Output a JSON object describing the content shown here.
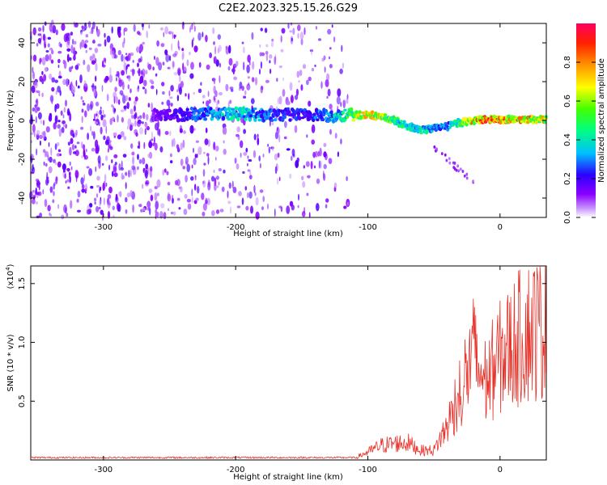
{
  "title": "C2E2.2023.325.15.26.G29",
  "colors": {
    "snr_line": "#e8332b",
    "axis": "#000000"
  },
  "chart_data": [
    {
      "type": "heatmap",
      "xlabel": "Height of straight line (km)",
      "ylabel": "Frequency (Hz)",
      "xlim": [
        -355,
        35
      ],
      "ylim": [
        -50,
        50
      ],
      "xticks": [
        "-300",
        "-200",
        "-100",
        "0"
      ],
      "yticks": [
        "-40",
        "-20",
        "0",
        "20",
        "40"
      ],
      "colorbar": {
        "label": "Normalized spectral amplitude",
        "range": [
          0.0,
          1.0
        ],
        "ticks": [
          "0.0",
          "0.2",
          "0.4",
          "0.6",
          "0.8"
        ]
      },
      "signal_trace": {
        "description_units": "frequency center (Hz) vs height (km)",
        "x": [
          -260,
          -240,
          -220,
          -200,
          -180,
          -160,
          -140,
          -120,
          -100,
          -90,
          -80,
          -70,
          -60,
          -50,
          -40,
          -30,
          -20,
          -10,
          0,
          10,
          20,
          30
        ],
        "y": [
          3,
          3,
          3.5,
          3.5,
          3,
          3,
          2.5,
          2.5,
          3,
          2,
          0,
          -3,
          -5,
          -4,
          -3,
          -1,
          0,
          0.5,
          0.5,
          0.5,
          0.5,
          0.5
        ],
        "amplitude": [
          0.15,
          0.25,
          0.35,
          0.45,
          0.35,
          0.25,
          0.3,
          0.45,
          0.85,
          0.7,
          0.55,
          0.45,
          0.45,
          0.4,
          0.35,
          0.6,
          0.85,
          0.95,
          0.9,
          0.85,
          0.85,
          0.85
        ]
      }
    },
    {
      "type": "line",
      "xlabel": "Height of straight line (km)",
      "ylabel": "SNR (10 * v/v)",
      "yscale_label": "(x10",
      "yscale_exp": "4",
      "xlim": [
        -355,
        35
      ],
      "ylim": [
        0,
        1.65
      ],
      "xticks": [
        "-300",
        "-200",
        "-100",
        "0"
      ],
      "yticks": [
        "0.5",
        "1.0",
        "1.5"
      ],
      "envelope": {
        "x": [
          -355,
          -300,
          -250,
          -200,
          -150,
          -110,
          -100,
          -90,
          -80,
          -70,
          -60,
          -50,
          -40,
          -30,
          -25,
          -20,
          -15,
          -10,
          -5,
          0,
          10,
          20,
          30,
          35
        ],
        "y": [
          0.02,
          0.02,
          0.02,
          0.02,
          0.02,
          0.02,
          0.08,
          0.15,
          0.17,
          0.18,
          0.1,
          0.1,
          0.35,
          0.75,
          0.9,
          1.1,
          0.9,
          0.8,
          0.95,
          1.05,
          1.2,
          1.32,
          1.38,
          1.4
        ]
      }
    }
  ]
}
